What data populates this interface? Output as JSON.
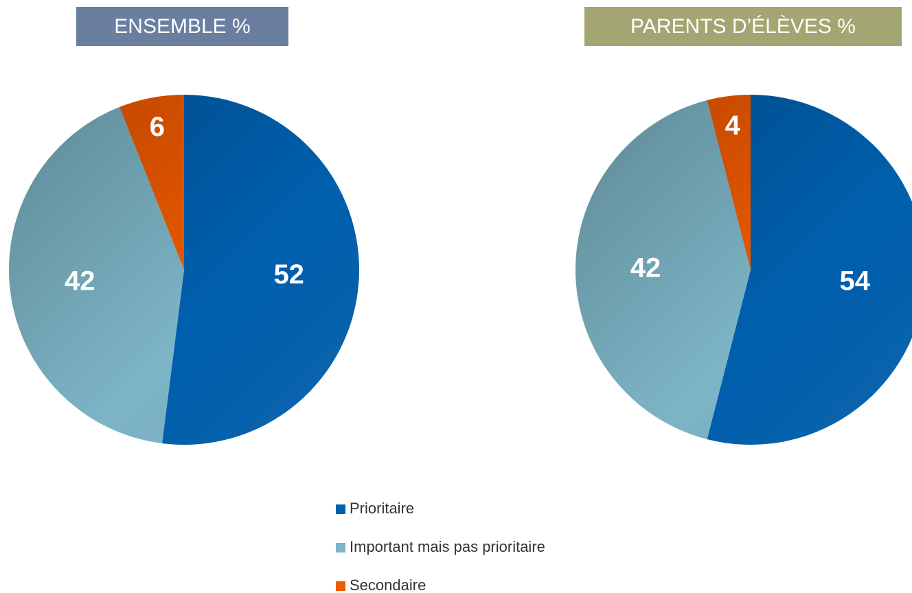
{
  "legend": {
    "labels": [
      "Prioritaire",
      "Important mais pas prioritaire",
      "Secondaire"
    ],
    "colors": [
      "#0060ae",
      "#7db5c6",
      "#f05a00"
    ]
  },
  "chart_data": [
    {
      "type": "pie",
      "title": "ENSEMBLE %",
      "values": [
        52,
        42,
        6
      ]
    },
    {
      "type": "pie",
      "title": "PARENTS D’ÉLÈVES %",
      "values": [
        54,
        42,
        4
      ]
    }
  ]
}
